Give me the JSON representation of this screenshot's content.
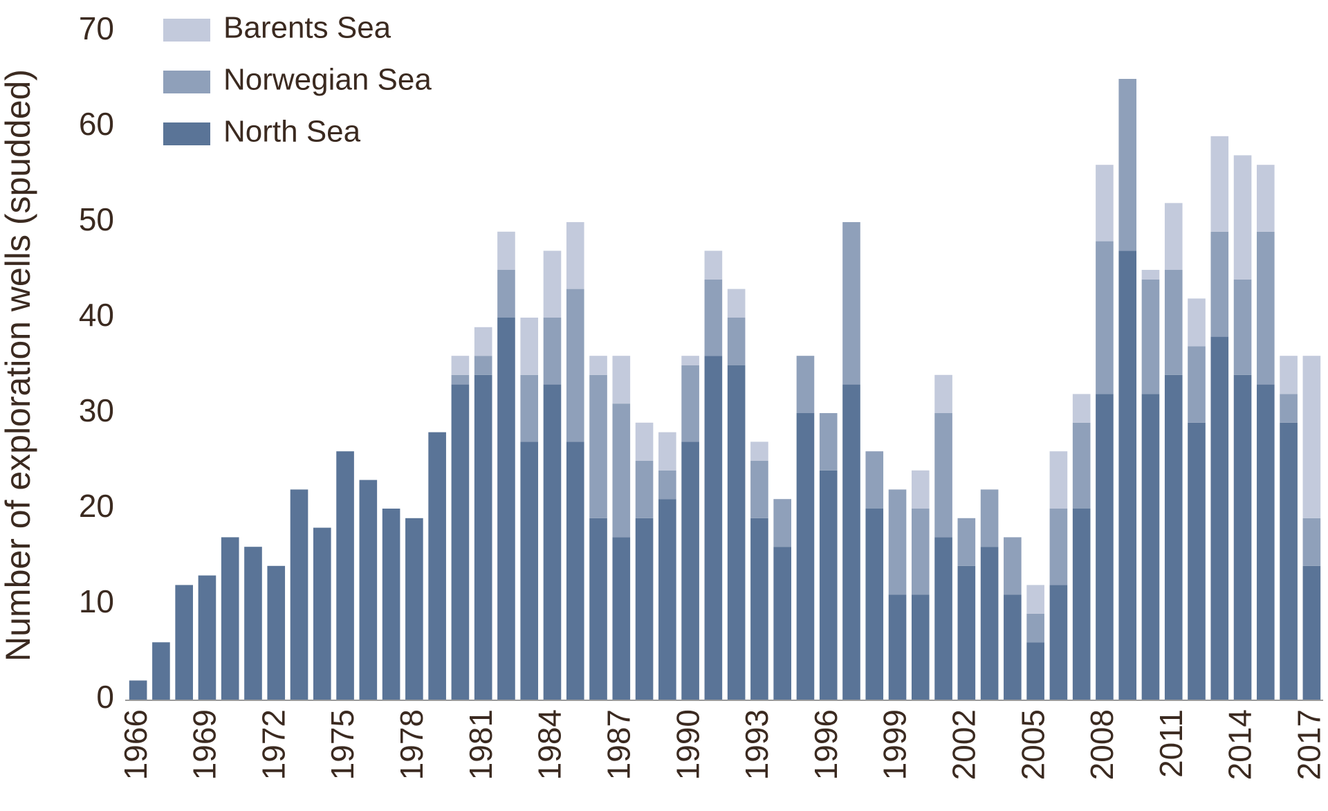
{
  "chart_data": {
    "type": "stacked_bar",
    "y_label": "Number of exploration wells (spudded)",
    "categories": [
      "1966",
      null,
      null,
      "1969",
      null,
      null,
      "1972",
      null,
      null,
      "1975",
      null,
      null,
      "1978",
      null,
      null,
      "1981",
      null,
      null,
      "1984",
      null,
      null,
      "1987",
      null,
      null,
      "1990",
      null,
      null,
      "1993",
      null,
      null,
      "1996",
      null,
      null,
      "1999",
      null,
      null,
      "2002",
      null,
      null,
      "2005",
      null,
      null,
      "2008",
      null,
      null,
      "2011",
      null,
      null,
      "2014",
      null,
      null,
      "2017"
    ],
    "series": [
      {
        "name": "North Sea",
        "color": "#5a7497",
        "values": [
          2,
          6,
          12,
          13,
          17,
          16,
          14,
          22,
          18,
          26,
          23,
          20,
          19,
          28,
          33,
          34,
          40,
          27,
          33,
          27,
          19,
          17,
          19,
          21,
          27,
          36,
          35,
          19,
          16,
          30,
          24,
          33,
          20,
          11,
          11,
          17,
          14,
          16,
          11,
          6,
          12,
          20,
          32,
          47,
          32,
          34,
          29,
          38,
          34,
          33,
          29,
          14
        ]
      },
      {
        "name": "Norwegian Sea",
        "color": "#8fa0ba",
        "values": [
          0,
          0,
          0,
          0,
          0,
          0,
          0,
          0,
          0,
          0,
          0,
          0,
          0,
          0,
          1,
          2,
          5,
          7,
          7,
          16,
          15,
          14,
          6,
          3,
          8,
          8,
          5,
          6,
          5,
          6,
          6,
          17,
          6,
          11,
          9,
          13,
          5,
          6,
          6,
          3,
          8,
          9,
          16,
          18,
          12,
          11,
          8,
          11,
          10,
          16,
          3,
          5
        ]
      },
      {
        "name": "Barents Sea",
        "color": "#c3cadc",
        "values": [
          0,
          0,
          0,
          0,
          0,
          0,
          0,
          0,
          0,
          0,
          0,
          0,
          0,
          0,
          2,
          3,
          4,
          6,
          7,
          7,
          2,
          5,
          4,
          4,
          1,
          3,
          3,
          2,
          0,
          0,
          0,
          0,
          0,
          0,
          4,
          4,
          0,
          0,
          0,
          3,
          6,
          3,
          8,
          0,
          1,
          7,
          5,
          10,
          13,
          7,
          4,
          17
        ]
      }
    ],
    "ylim": [
      0,
      70
    ],
    "yticks": [
      0,
      10,
      20,
      30,
      40,
      50,
      60,
      70
    ]
  }
}
